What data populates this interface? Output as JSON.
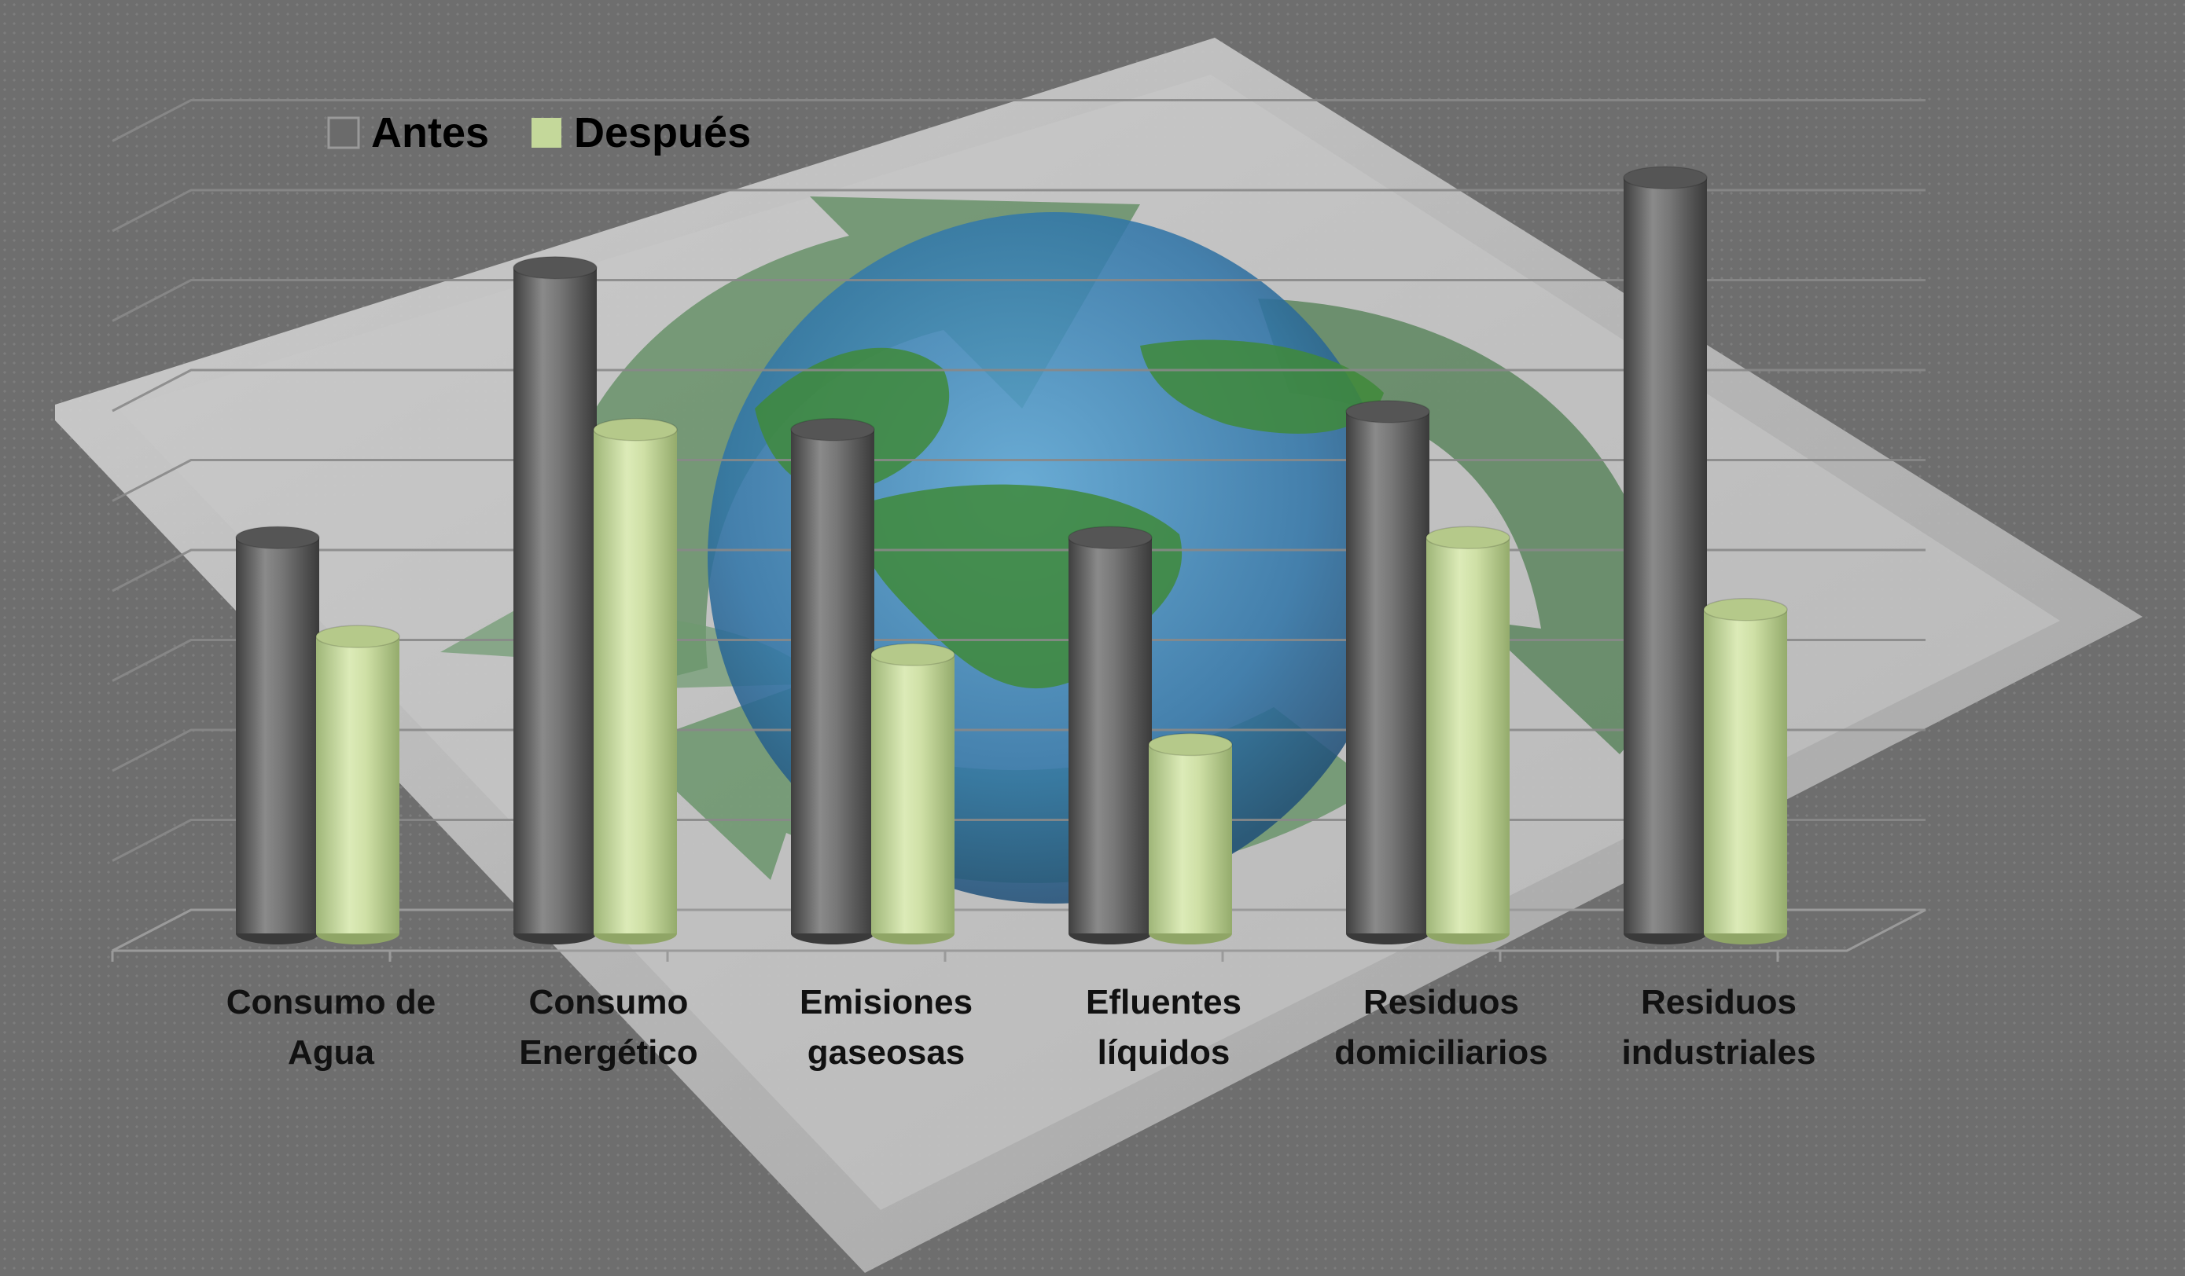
{
  "chart_data": {
    "type": "bar",
    "style": "3d-cylinder",
    "categories": [
      [
        "Consumo de",
        "Agua"
      ],
      [
        "Consumo",
        "Energético"
      ],
      [
        "Emisiones",
        "gaseosas"
      ],
      [
        "Efluentes",
        "líquidos"
      ],
      [
        "Residuos",
        "domiciliarios"
      ],
      [
        "Residuos",
        "industriales"
      ]
    ],
    "series": [
      {
        "name": "Antes",
        "color": "#6b6b6b",
        "values": [
          4.4,
          7.4,
          5.6,
          4.4,
          5.8,
          8.4
        ]
      },
      {
        "name": "Después",
        "color": "#c4d89a",
        "values": [
          3.3,
          5.6,
          3.1,
          2.1,
          4.4,
          3.6
        ]
      }
    ],
    "ylim": [
      0,
      9
    ],
    "grid": true,
    "legend_position": "top-left",
    "background": "recycling-globe-illustration"
  }
}
